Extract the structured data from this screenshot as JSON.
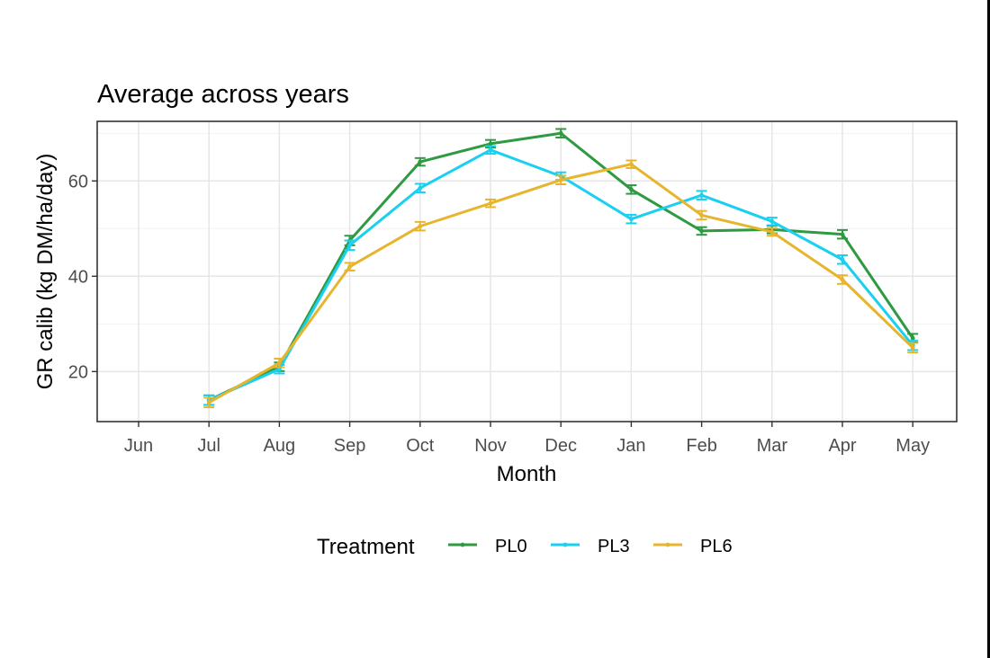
{
  "chart_data": {
    "type": "line",
    "title": "Average across years",
    "xlabel": "Month",
    "ylabel": "GR calib (kg DM/ha/day)",
    "categories": [
      "Jun",
      "Jul",
      "Aug",
      "Sep",
      "Oct",
      "Nov",
      "Dec",
      "Jan",
      "Feb",
      "Mar",
      "Apr",
      "May"
    ],
    "ylim": [
      9.5,
      72.5
    ],
    "yticks": [
      20,
      40,
      60
    ],
    "grid": true,
    "error_bars": true,
    "legend": {
      "title": "Treatment",
      "position": "bottom"
    },
    "series": [
      {
        "name": "PL0",
        "color": "#2e9a41",
        "values": [
          null,
          14.0,
          21.0,
          47.5,
          64.0,
          67.8,
          70.0,
          58.2,
          49.5,
          49.8,
          48.8,
          27.0
        ],
        "errors": [
          null,
          1.0,
          0.9,
          1.0,
          0.8,
          0.8,
          0.9,
          0.9,
          0.8,
          0.8,
          0.9,
          0.9
        ]
      },
      {
        "name": "PL3",
        "color": "#1ad0f0",
        "values": [
          null,
          14.0,
          20.5,
          46.5,
          58.5,
          66.5,
          61.0,
          52.0,
          57.0,
          51.5,
          43.5,
          25.5
        ],
        "errors": [
          null,
          1.0,
          0.9,
          1.0,
          0.9,
          0.8,
          0.8,
          0.9,
          0.9,
          0.8,
          0.9,
          1.0
        ]
      },
      {
        "name": "PL6",
        "color": "#e7b52d",
        "values": [
          null,
          13.5,
          21.8,
          42.0,
          50.5,
          55.3,
          60.2,
          63.5,
          52.8,
          49.3,
          39.3,
          25.0
        ],
        "errors": [
          null,
          1.0,
          0.9,
          0.8,
          0.9,
          0.8,
          0.9,
          0.8,
          0.9,
          0.8,
          0.9,
          1.0
        ]
      }
    ]
  }
}
